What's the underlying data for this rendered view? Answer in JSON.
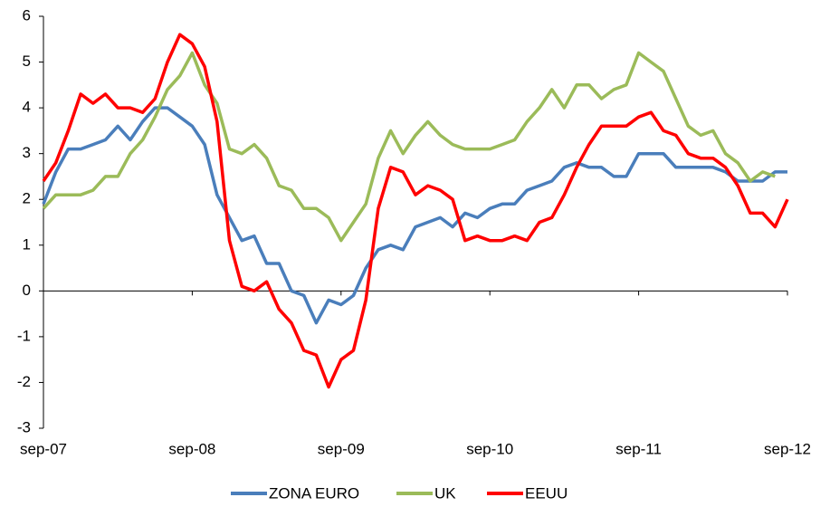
{
  "chart_data": {
    "type": "line",
    "categories": [
      "sep-07",
      null,
      null,
      null,
      null,
      null,
      null,
      null,
      null,
      null,
      null,
      null,
      "sep-08",
      null,
      null,
      null,
      null,
      null,
      null,
      null,
      null,
      null,
      null,
      null,
      "sep-09",
      null,
      null,
      null,
      null,
      null,
      null,
      null,
      null,
      null,
      null,
      null,
      "sep-10",
      null,
      null,
      null,
      null,
      null,
      null,
      null,
      null,
      null,
      null,
      null,
      "sep-11",
      null,
      null,
      null,
      null,
      null,
      null,
      null,
      null,
      null,
      null,
      null,
      "sep-12"
    ],
    "ylim": [
      -3,
      6
    ],
    "yticks": [
      -3,
      -2,
      -1,
      0,
      1,
      2,
      3,
      4,
      5,
      6
    ],
    "legend": "bottom",
    "series": [
      {
        "name": "ZONA EURO",
        "color": "#4a7ebb",
        "values": [
          1.9,
          2.6,
          3.1,
          3.1,
          3.2,
          3.3,
          3.6,
          3.3,
          3.7,
          4.0,
          4.0,
          3.8,
          3.6,
          3.2,
          2.1,
          1.6,
          1.1,
          1.2,
          0.6,
          0.6,
          0.0,
          -0.1,
          -0.7,
          -0.2,
          -0.3,
          -0.1,
          0.5,
          0.9,
          1.0,
          0.9,
          1.4,
          1.5,
          1.6,
          1.4,
          1.7,
          1.6,
          1.8,
          1.9,
          1.9,
          2.2,
          2.3,
          2.4,
          2.7,
          2.8,
          2.7,
          2.7,
          2.5,
          2.5,
          3.0,
          3.0,
          3.0,
          2.7,
          2.7,
          2.7,
          2.7,
          2.6,
          2.4,
          2.4,
          2.4,
          2.6,
          2.6
        ]
      },
      {
        "name": "UK",
        "color": "#9bbb59",
        "values": [
          1.8,
          2.1,
          2.1,
          2.1,
          2.2,
          2.5,
          2.5,
          3.0,
          3.3,
          3.8,
          4.4,
          4.7,
          5.2,
          4.5,
          4.1,
          3.1,
          3.0,
          3.2,
          2.9,
          2.3,
          2.2,
          1.8,
          1.8,
          1.6,
          1.1,
          1.5,
          1.9,
          2.9,
          3.5,
          3.0,
          3.4,
          3.7,
          3.4,
          3.2,
          3.1,
          3.1,
          3.1,
          3.2,
          3.3,
          3.7,
          4.0,
          4.4,
          4.0,
          4.5,
          4.5,
          4.2,
          4.4,
          4.5,
          5.2,
          5.0,
          4.8,
          4.2,
          3.6,
          3.4,
          3.5,
          3.0,
          2.8,
          2.4,
          2.6,
          2.5,
          null
        ]
      },
      {
        "name": "EEUU",
        "color": "#ff0000",
        "values": [
          2.4,
          2.8,
          3.5,
          4.3,
          4.1,
          4.3,
          4.0,
          4.0,
          3.9,
          4.2,
          5.0,
          5.6,
          5.4,
          4.9,
          3.7,
          1.1,
          0.1,
          0.0,
          0.2,
          -0.4,
          -0.7,
          -1.3,
          -1.4,
          -2.1,
          -1.5,
          -1.3,
          -0.2,
          1.8,
          2.7,
          2.6,
          2.1,
          2.3,
          2.2,
          2.0,
          1.1,
          1.2,
          1.1,
          1.1,
          1.2,
          1.1,
          1.5,
          1.6,
          2.1,
          2.7,
          3.2,
          3.6,
          3.6,
          3.6,
          3.8,
          3.9,
          3.5,
          3.4,
          3.0,
          2.9,
          2.9,
          2.7,
          2.3,
          1.7,
          1.7,
          1.4,
          2.0
        ]
      }
    ]
  }
}
